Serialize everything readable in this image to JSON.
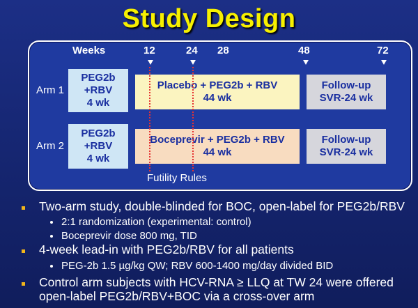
{
  "title": "Study Design",
  "timeline": {
    "weeks_label": "Weeks",
    "ticks": [
      "12",
      "24",
      "28",
      "48",
      "72"
    ],
    "futility_label": "Futility Rules"
  },
  "arms": [
    {
      "label": "Arm 1",
      "leadin": [
        "PEG2b",
        "+RBV",
        "4 wk"
      ],
      "treatment": [
        "Placebo + PEG2b + RBV",
        "44 wk"
      ],
      "followup": [
        "Follow-up",
        "SVR-24 wk"
      ]
    },
    {
      "label": "Arm 2",
      "leadin": [
        "PEG2b",
        "+RBV",
        "4 wk"
      ],
      "treatment": [
        "Boceprevir + PEG2b + RBV",
        "44 wk"
      ],
      "followup": [
        "Follow-up",
        "SVR-24 wk"
      ]
    }
  ],
  "bullets": [
    {
      "text": "Two-arm study, double-blinded for BOC, open-label for PEG2b/RBV",
      "sub": [
        "2:1 randomization (experimental: control)",
        "Boceprevir dose 800 mg, TID"
      ]
    },
    {
      "text": "4-week lead-in with PEG2b/RBV for all patients",
      "sub": [
        "PEG-2b 1.5 µg/kg QW; RBV 600-1400 mg/day divided BID"
      ]
    },
    {
      "text_lines": [
        "Control arm subjects with HCV-RNA ≥ LLQ at TW 24 were offered",
        "open-label PEG2b/RBV+BOC via a cross-over arm"
      ]
    }
  ],
  "colors": {
    "title": "#f7f000",
    "background": "#1c2f86",
    "leadin": "#cfe6f5",
    "placebo": "#fbf4c0",
    "boceprevir": "#f8dcc0",
    "followup": "#d6d6dc",
    "bullet": "#f2b51a",
    "futility_line": "#e63232"
  }
}
